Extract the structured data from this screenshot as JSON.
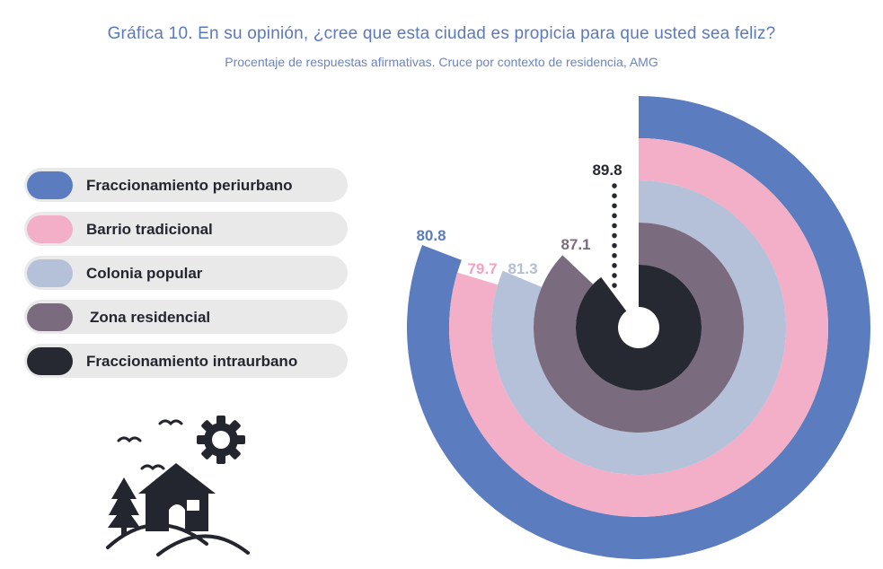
{
  "title": "Gráfica 10. En su opinión, ¿cree que esta ciudad es propicia para que usted sea feliz?",
  "subtitle": "Procentaje de respuestas afirmativas. Cruce por contexto de residencia, AMG",
  "icons": {
    "legend_decoration": "house-landscape-icon"
  },
  "chart_data": {
    "type": "radial-bar",
    "max": 100,
    "series": [
      {
        "name": "Fraccionamiento periurbano",
        "value": 80.8,
        "label": "80.8",
        "color": "#5b7cbf",
        "label_color": "#5b7cbf"
      },
      {
        "name": "Barrio tradicional",
        "value": 79.7,
        "label": "79.7",
        "color": "#f2afc7",
        "label_color": "#f2a3bf"
      },
      {
        "name": "Colonia popular",
        "value": 81.3,
        "label": "81.3",
        "color": "#b5c0d9",
        "label_color": "#b2bdd6"
      },
      {
        "name": "Zona residencial",
        "value": 87.1,
        "label": "87.1",
        "color": "#7b6b7e",
        "label_color": "#7b6b7e"
      },
      {
        "name": "Fraccionamiento intraurbano",
        "value": 89.8,
        "label": "89.8",
        "color": "#262932",
        "label_color": "#262932"
      }
    ]
  }
}
